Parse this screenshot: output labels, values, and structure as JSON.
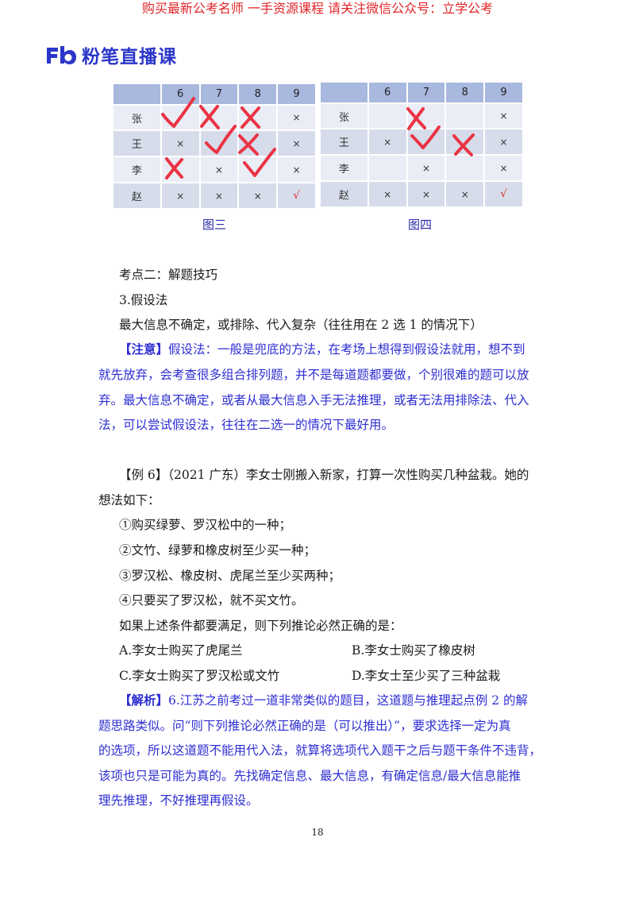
{
  "banner": "购买最新公考名师 一手资源课程 请关注微信公众号：立学公考",
  "logo": {
    "icon": "fb-logo-icon",
    "text": "粉笔直播课",
    "color": "#2b36c9"
  },
  "tables": [
    {
      "caption": "图三",
      "header": [
        "",
        "6",
        "7",
        "8",
        "9"
      ],
      "rows": [
        [
          "张",
          "",
          "",
          "",
          "×"
        ],
        [
          "王",
          "×",
          "",
          "",
          "×"
        ],
        [
          "李",
          "",
          "×",
          "",
          "×"
        ],
        [
          "赵",
          "×",
          "×",
          "×",
          "√"
        ]
      ]
    },
    {
      "caption": "图四",
      "header": [
        "",
        "6",
        "7",
        "8",
        "9"
      ],
      "rows": [
        [
          "张",
          "",
          "",
          "",
          "×"
        ],
        [
          "王",
          "×",
          "",
          "",
          "×"
        ],
        [
          "李",
          "",
          "×",
          "",
          "×"
        ],
        [
          "赵",
          "×",
          "×",
          "×",
          "√"
        ]
      ]
    }
  ],
  "section": {
    "heading": "考点二：解题技巧",
    "subheading": "3.假设法",
    "summary": "最大信息不确定，或排除、代入复杂（往往用在 2 选 1 的情况下）"
  },
  "note": {
    "tag": "【注意】",
    "lines": [
      "假设法：一般是兜底的方法，在考场上想得到假设法就用，想不到",
      "就先放弃，会考查很多组合排列题，并不是每道题都要做，个别很难的题可以放",
      "弃。最大信息不确定，或者从最大信息入手无法推理，或者无法用排除法、代入",
      "法，可以尝试假设法，往往在二选一的情况下最好用。"
    ]
  },
  "example": {
    "lines": [
      "【例 6】（2021 广东）李女士刚搬入新家，打算一次性购买几种盆栽。她的",
      "想法如下："
    ],
    "conditions": [
      "①购买绿萝、罗汉松中的一种；",
      "②文竹、绿萝和橡皮树至少买一种；",
      "③罗汉松、橡皮树、虎尾兰至少买两种；",
      "④只要买了罗汉松，就不买文竹。"
    ],
    "question": "如果上述条件都要满足，则下列推论必然正确的是：",
    "options": {
      "A": "A.李女士购买了虎尾兰",
      "B": "B.李女士购买了橡皮树",
      "C": "C.李女士购买了罗汉松或文竹",
      "D": "D.李女士至少买了三种盆栽"
    }
  },
  "analysis": {
    "tag": "【解析】",
    "lines": [
      "6.江苏之前考过一道非常类似的题目，这道题与推理起点例 2 的解",
      "题思路类似。问“则下列推论必然正确的是（可以推出）”，要求选择一定为真",
      "的选项，所以这道题不能用代入法，就算将选项代入题干之后与题干条件不违背，",
      "该项也只是可能为真的。先找确定信息、最大信息，有确定信息/最大信息能推",
      "理先推理，不好推理再假设。"
    ]
  },
  "page_number": "18"
}
